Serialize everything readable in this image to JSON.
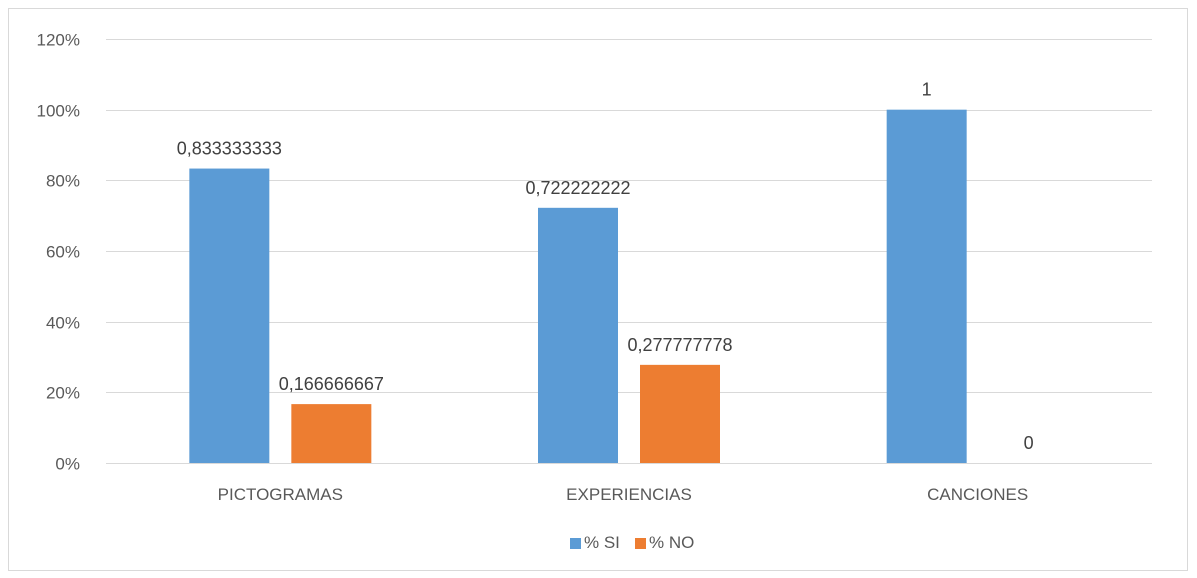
{
  "chart_data": {
    "type": "bar",
    "categories": [
      "PICTOGRAMAS",
      "EXPERIENCIAS",
      "CANCIONES"
    ],
    "series": [
      {
        "name": "% SI",
        "color": "#5b9bd5",
        "values": [
          0.833333333,
          0.722222222,
          1
        ],
        "labels": [
          "0,833333333",
          "0,722222222",
          "1"
        ]
      },
      {
        "name": "% NO",
        "color": "#ed7d31",
        "values": [
          0.166666667,
          0.277777778,
          0
        ],
        "labels": [
          "0,166666667",
          "0,277777778",
          "0"
        ]
      }
    ],
    "ylim": [
      0,
      1.2
    ],
    "yticks": [
      0,
      0.2,
      0.4,
      0.6,
      0.8,
      1.0,
      1.2
    ],
    "ytick_labels": [
      "0%",
      "20%",
      "40%",
      "60%",
      "80%",
      "100%",
      "120%"
    ],
    "grid": true,
    "gridline_color": "#d9d9d9",
    "legend_position": "bottom"
  }
}
